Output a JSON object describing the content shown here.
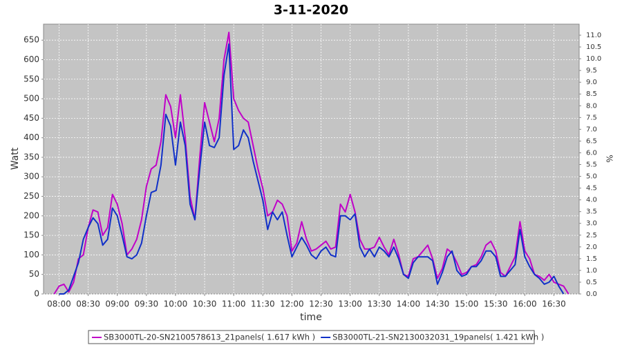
{
  "chart_data": {
    "type": "line",
    "title": "3-11-2020",
    "x_label": "time",
    "y_label": "Watt",
    "y2_label": "%",
    "x": [
      "07:55",
      "08:00",
      "08:05",
      "08:10",
      "08:15",
      "08:20",
      "08:25",
      "08:30",
      "08:35",
      "08:40",
      "08:45",
      "08:50",
      "08:55",
      "09:00",
      "09:05",
      "09:10",
      "09:15",
      "09:20",
      "09:25",
      "09:30",
      "09:35",
      "09:40",
      "09:45",
      "09:50",
      "09:55",
      "10:00",
      "10:05",
      "10:10",
      "10:15",
      "10:20",
      "10:25",
      "10:30",
      "10:35",
      "10:40",
      "10:45",
      "10:50",
      "10:55",
      "11:00",
      "11:05",
      "11:10",
      "11:15",
      "11:20",
      "11:25",
      "11:30",
      "11:35",
      "11:40",
      "11:45",
      "11:50",
      "11:55",
      "12:00",
      "12:05",
      "12:10",
      "12:15",
      "12:20",
      "12:25",
      "12:30",
      "12:35",
      "12:40",
      "12:45",
      "12:50",
      "12:55",
      "13:00",
      "13:05",
      "13:10",
      "13:15",
      "13:20",
      "13:25",
      "13:30",
      "13:35",
      "13:40",
      "13:45",
      "13:50",
      "13:55",
      "14:00",
      "14:05",
      "14:10",
      "14:15",
      "14:20",
      "14:25",
      "14:30",
      "14:35",
      "14:40",
      "14:45",
      "14:50",
      "14:55",
      "15:00",
      "15:05",
      "15:10",
      "15:15",
      "15:20",
      "15:25",
      "15:30",
      "15:35",
      "15:40",
      "15:45",
      "15:50",
      "15:55",
      "16:00",
      "16:05",
      "16:10",
      "16:15",
      "16:20",
      "16:25",
      "16:30",
      "16:35",
      "16:40",
      "16:45"
    ],
    "series": [
      {
        "name": "SB3000TL-20-SN2100578613_21panels( 1.617 kWh )",
        "color": "#c000c8",
        "values": [
          0,
          20,
          25,
          5,
          30,
          90,
          100,
          170,
          215,
          210,
          150,
          170,
          255,
          230,
          180,
          100,
          115,
          140,
          190,
          275,
          320,
          330,
          390,
          510,
          480,
          400,
          510,
          400,
          250,
          190,
          350,
          490,
          440,
          390,
          450,
          600,
          670,
          500,
          470,
          450,
          440,
          380,
          320,
          270,
          200,
          210,
          240,
          230,
          200,
          110,
          130,
          185,
          140,
          110,
          115,
          125,
          135,
          115,
          120,
          230,
          210,
          255,
          210,
          140,
          115,
          115,
          120,
          145,
          120,
          100,
          140,
          100,
          50,
          45,
          90,
          95,
          110,
          125,
          90,
          40,
          65,
          115,
          105,
          80,
          50,
          55,
          70,
          75,
          95,
          125,
          135,
          110,
          55,
          45,
          70,
          95,
          185,
          110,
          90,
          50,
          45,
          35,
          50,
          30,
          25,
          20,
          0
        ]
      },
      {
        "name": "SB3000TL-21-SN2130032031_19panels( 1.421 kWh )",
        "color": "#1030c8",
        "values": [
          null,
          0,
          0,
          10,
          45,
          80,
          140,
          170,
          195,
          180,
          125,
          140,
          220,
          200,
          150,
          95,
          90,
          100,
          130,
          200,
          260,
          265,
          330,
          460,
          430,
          330,
          440,
          380,
          230,
          190,
          320,
          440,
          380,
          375,
          400,
          560,
          640,
          370,
          380,
          420,
          400,
          340,
          290,
          240,
          165,
          210,
          190,
          210,
          150,
          95,
          120,
          145,
          125,
          100,
          90,
          110,
          120,
          100,
          95,
          200,
          200,
          190,
          205,
          120,
          95,
          115,
          95,
          120,
          110,
          95,
          120,
          90,
          50,
          40,
          80,
          95,
          95,
          95,
          85,
          25,
          55,
          95,
          110,
          60,
          45,
          50,
          70,
          70,
          85,
          110,
          110,
          95,
          45,
          45,
          60,
          75,
          165,
          95,
          70,
          50,
          40,
          25,
          30,
          45,
          20,
          0,
          null
        ]
      }
    ],
    "xlim": [
      "07:44",
      "16:56"
    ],
    "xticks": [
      "08:00",
      "08:30",
      "09:00",
      "09:30",
      "10:00",
      "10:30",
      "11:00",
      "11:30",
      "12:00",
      "12:30",
      "13:00",
      "13:30",
      "14:00",
      "14:30",
      "15:00",
      "15:30",
      "16:00",
      "16:30"
    ],
    "ylim": [
      0,
      691
    ],
    "yticks": [
      0,
      50,
      100,
      150,
      200,
      250,
      300,
      350,
      400,
      450,
      500,
      550,
      600,
      650
    ],
    "y2lim": [
      0,
      11.47
    ],
    "y2ticks": [
      {
        "value": 0,
        "label": "0.0"
      },
      0.5,
      {
        "value": 1,
        "label": "1.0"
      },
      1.5,
      {
        "value": 2,
        "label": "2.0"
      },
      2.5,
      {
        "value": 3,
        "label": "3.0"
      },
      3.5,
      {
        "value": 4,
        "label": "4.0"
      },
      4.5,
      {
        "value": 5,
        "label": "5.0"
      },
      5.5,
      {
        "value": 6,
        "label": "6.0"
      },
      6.5,
      {
        "value": 7,
        "label": "7.0"
      },
      7.5,
      {
        "value": 8,
        "label": "8.0"
      },
      8.5,
      {
        "value": 9,
        "label": "9.0"
      },
      9.5,
      {
        "value": 10,
        "label": "10.0"
      },
      10.5,
      {
        "value": 11,
        "label": "11.0"
      }
    ],
    "grid": true
  }
}
